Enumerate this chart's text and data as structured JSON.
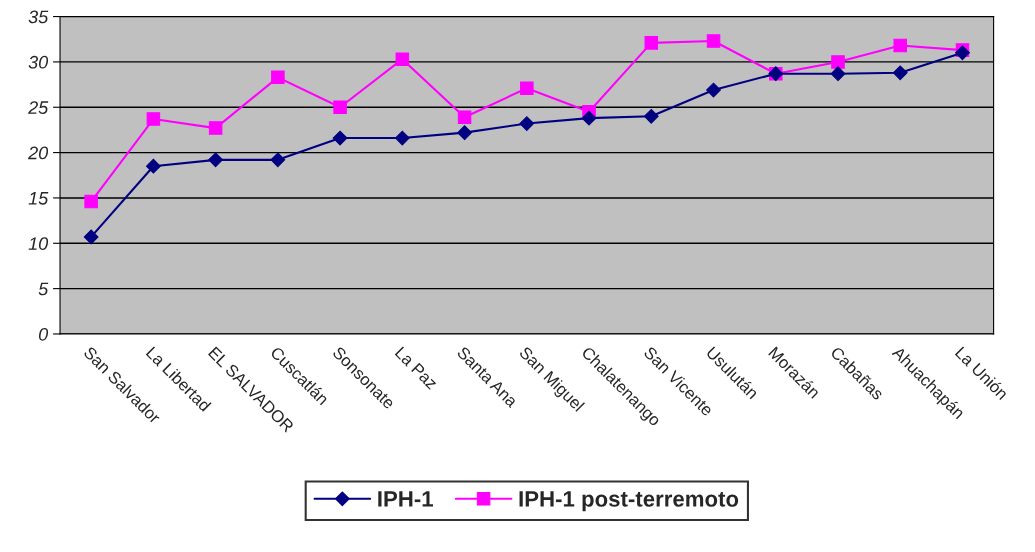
{
  "chart_data": {
    "type": "line",
    "categories": [
      "San Salvador",
      "La Libertad",
      "EL SALVADOR",
      "Cuscatlán",
      "Sonsonate",
      "La Paz",
      "Santa Ana",
      "San Miguel",
      "Chalatenango",
      "San Vicente",
      "Usulután",
      "Morazán",
      "Cabañas",
      "Ahuachapán",
      "La Unión"
    ],
    "series": [
      {
        "name": "IPH-1",
        "color": "#000080",
        "marker": "diamond",
        "values": [
          10.7,
          18.5,
          19.2,
          19.2,
          21.6,
          21.6,
          22.2,
          23.2,
          23.8,
          24.0,
          26.9,
          28.7,
          28.7,
          28.8,
          31.0
        ]
      },
      {
        "name": "IPH-1 post-terremoto",
        "color": "#ff00ff",
        "marker": "square",
        "values": [
          14.6,
          23.7,
          22.7,
          28.3,
          25.0,
          30.3,
          23.9,
          27.1,
          24.5,
          32.1,
          32.3,
          28.7,
          30.0,
          31.8,
          31.3
        ]
      }
    ],
    "ylim": [
      0,
      35
    ],
    "yticks": [
      0,
      5,
      10,
      15,
      20,
      25,
      30,
      35
    ],
    "grid": "y",
    "legend": "bottom",
    "line_style": "solid"
  }
}
